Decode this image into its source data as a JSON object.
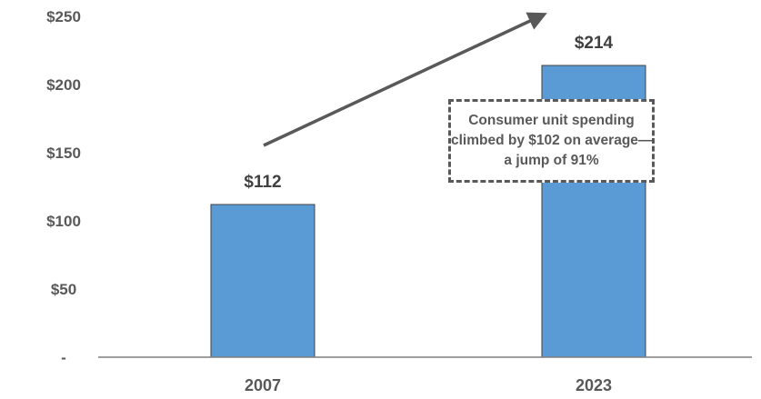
{
  "chart_data": {
    "type": "bar",
    "categories": [
      "2007",
      "2023"
    ],
    "values": [
      112,
      214
    ],
    "data_labels": [
      "$112",
      "$214"
    ],
    "ylim": [
      0,
      250
    ],
    "y_ticks": [
      0,
      50,
      100,
      150,
      200,
      250
    ],
    "y_tick_labels": [
      "-",
      "$50",
      "$100",
      "$150",
      "$200",
      "$250"
    ],
    "bar_color": "#5B9BD5",
    "grid": false,
    "title": "",
    "xlabel": "",
    "ylabel": "",
    "annotation": {
      "lines": [
        "Consumer unit spending",
        "climbed by $102 on average—",
        "a jump of 91%"
      ]
    },
    "trend_arrow": true
  }
}
